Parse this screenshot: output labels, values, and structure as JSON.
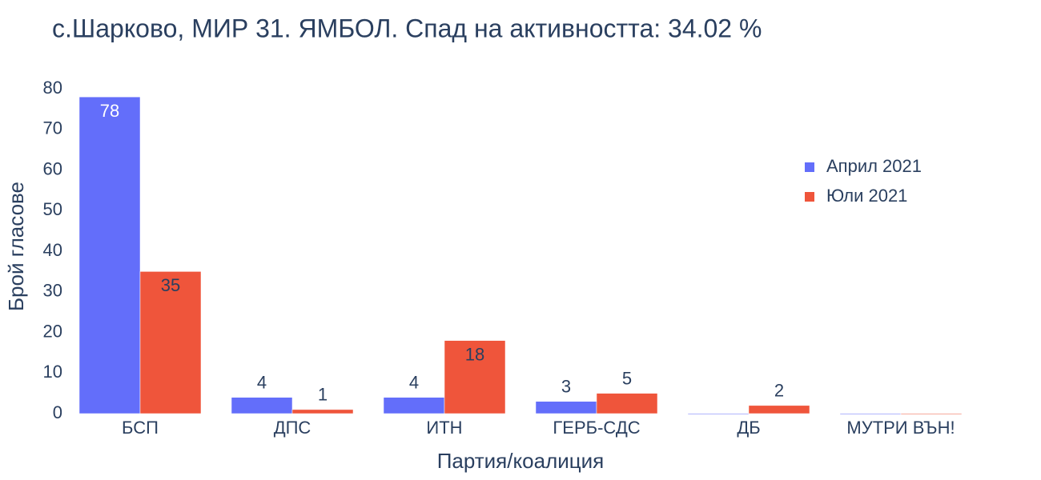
{
  "chart_data": {
    "type": "bar",
    "title": "с.Шарково, МИР 31. ЯМБОЛ. Спад на активността: 34.02 %",
    "x_label": "Партия/коалиция",
    "y_label": "Брой гласове",
    "categories": [
      "БСП",
      "ДПС",
      "ИТН",
      "ГЕРБ-СДС",
      "ДБ",
      "МУТРИ ВЪН!"
    ],
    "series": [
      {
        "name": "Април 2021",
        "color": "#636efa",
        "values": [
          78,
          4,
          4,
          3,
          0,
          0
        ]
      },
      {
        "name": "Юли 2021",
        "color": "#ef553b",
        "values": [
          35,
          1,
          18,
          5,
          2,
          0
        ]
      }
    ],
    "ylim": [
      0,
      80
    ],
    "yticks": [
      0,
      10,
      20,
      30,
      40,
      50,
      60,
      70,
      80
    ],
    "legend": "top-right"
  }
}
